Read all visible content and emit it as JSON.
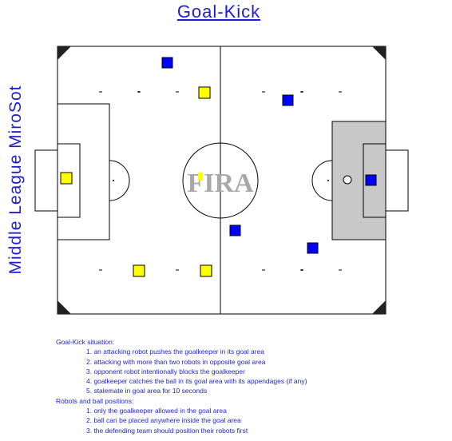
{
  "title": "Goal-Kick",
  "side_title": "Middle League MiroSot",
  "field": {
    "logo_text": "FIRA"
  },
  "notes": {
    "section1_title": "Goal-Kick situation:",
    "section1_items": [
      "1. an attacking robot pushes the goalkeeper in its goal area",
      "2. attacking with more than two robots in opposite goal area",
      "3. opponent robot intentionally blocks the goalkeeper",
      "4. goalkeeper catches the ball in its goal area with its appendages (if any)",
      "5. stalemate in goal area for 10 seconds"
    ],
    "section2_title": "Robots and ball positions:",
    "section2_items": [
      "1. only the goalkeeper allowed in the goal area",
      "2. ball can be placed anywhere inside the goal area",
      "3. the defending team should position their robots first"
    ]
  },
  "colors": {
    "text": "#1f1fd0",
    "yellow_team": "#ffff00",
    "blue_team": "#0000ff",
    "goal_area_fill": "#c8c8c8"
  }
}
